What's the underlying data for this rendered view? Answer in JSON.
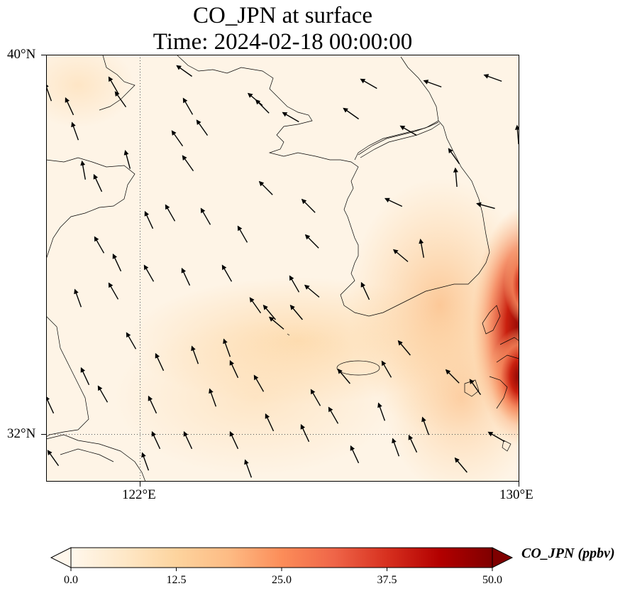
{
  "title": {
    "line1": "CO_JPN at surface",
    "line2": "Time: 2024-02-18 00:00:00"
  },
  "axes": {
    "lat_ticks": [
      "40°N",
      "32°N"
    ],
    "lon_ticks": [
      "122°E",
      "130°E"
    ]
  },
  "map": {
    "variable": "CO_JPN",
    "level": "surface",
    "extent": {
      "lon_min": 120,
      "lon_max": 130,
      "lat_min": 31,
      "lat_max": 40
    },
    "gridlines": {
      "lons": [
        122,
        130
      ],
      "lats": [
        32,
        40
      ],
      "style": "dotted"
    },
    "overlay": "wind-vectors",
    "high_values_region": "east of Korea / Tsushima Strait, approaching 50 ppbv"
  },
  "colorbar": {
    "label": "CO_JPN (ppbv)",
    "ticks": [
      "0.0",
      "12.5",
      "25.0",
      "37.5",
      "50.0"
    ],
    "min": 0,
    "max": 50,
    "extend": "both",
    "colormap": "OrRd",
    "colors": [
      "#fff7ec",
      "#fee8c8",
      "#fdd49e",
      "#fdbb84",
      "#fc8d59",
      "#ef6548",
      "#d7301f",
      "#b30000",
      "#7f0000"
    ]
  }
}
